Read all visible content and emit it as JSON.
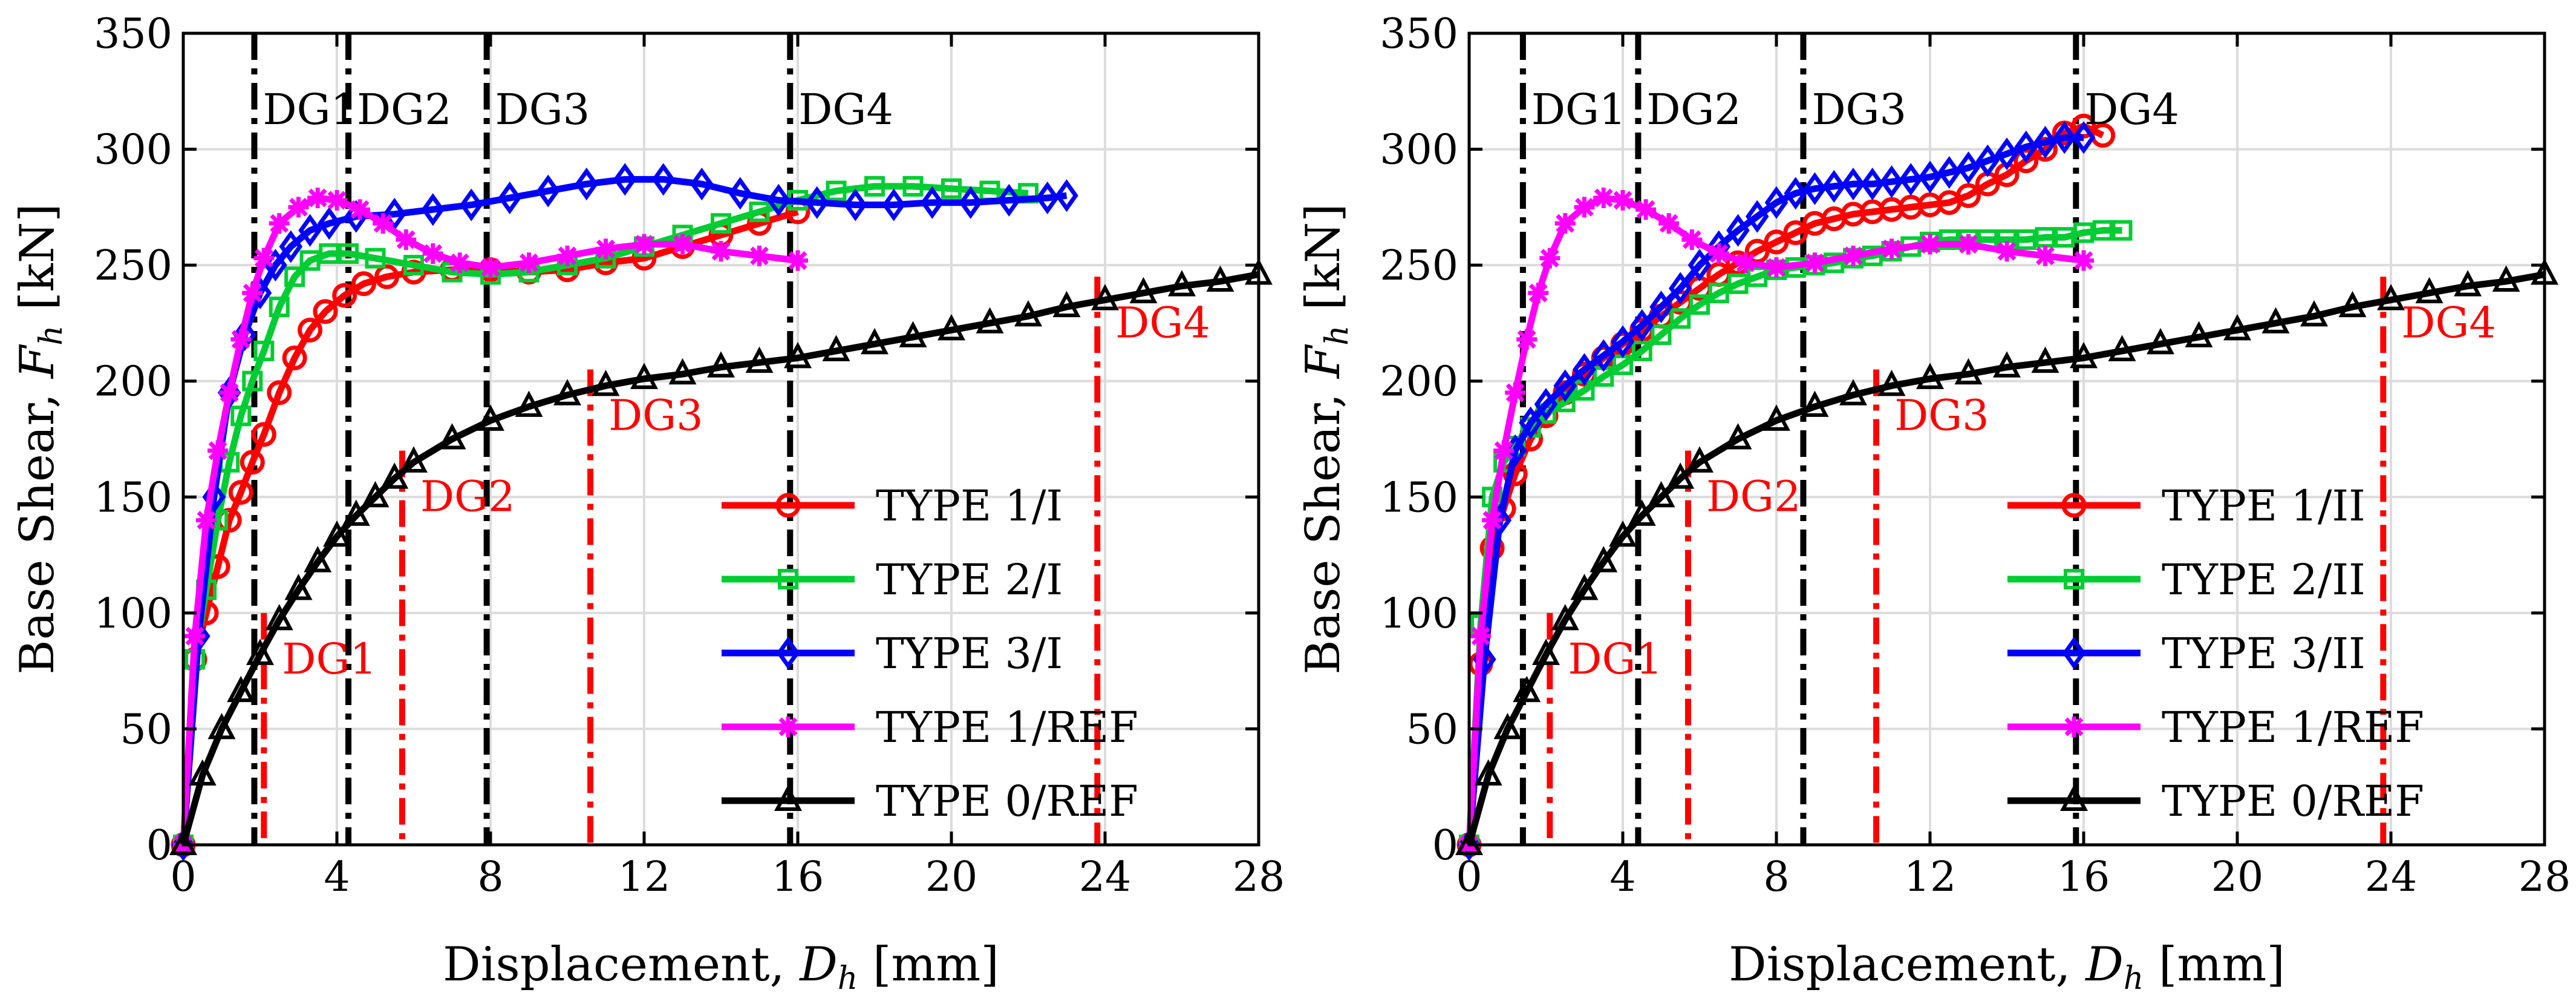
{
  "chart_data": [
    {
      "type": "line",
      "panel": "left",
      "xlabel": "Displacement, D_h [mm]",
      "xlabel_text": "Displacement, ",
      "xlabel_sym": "D",
      "xlabel_sub": "h",
      "xlabel_unit": " [mm]",
      "ylabel_text": "Base Shear, ",
      "ylabel_sym": "F",
      "ylabel_sub": "h",
      "ylabel_unit": " [kN]",
      "xlim": [
        0,
        28
      ],
      "ylim": [
        0,
        350
      ],
      "xticks": [
        0,
        4,
        8,
        12,
        16,
        20,
        24,
        28
      ],
      "yticks": [
        0,
        50,
        100,
        150,
        200,
        250,
        300,
        350
      ],
      "grid": true,
      "legend_position": "lower-right",
      "black_dg_lines": [
        {
          "label": "DG1",
          "x": 1.85
        },
        {
          "label": "DG2",
          "x": 4.3
        },
        {
          "label": "DG3",
          "x": 7.9
        },
        {
          "label": "DG4",
          "x": 15.8
        }
      ],
      "red_dg_lines": [
        {
          "label": "DG1",
          "x": 2.1,
          "ytop": 100
        },
        {
          "label": "DG2",
          "x": 5.7,
          "ytop": 170
        },
        {
          "label": "DG3",
          "x": 10.6,
          "ytop": 205
        },
        {
          "label": "DG4",
          "x": 23.8,
          "ytop": 245
        }
      ],
      "series": [
        {
          "name": "TYPE 1/I",
          "color": "#ff0000",
          "marker": "circle",
          "x": [
            0,
            0.3,
            0.6,
            0.9,
            1.2,
            1.5,
            1.8,
            2.1,
            2.5,
            2.9,
            3.3,
            3.7,
            4.2,
            4.7,
            5.3,
            6,
            7,
            8,
            9,
            10,
            11,
            12,
            13,
            14,
            15,
            16
          ],
          "y": [
            0,
            80,
            100,
            120,
            140,
            152,
            165,
            177,
            195,
            210,
            222,
            230,
            237,
            242,
            245,
            247,
            248,
            248,
            247,
            248,
            251,
            253,
            258,
            263,
            268,
            273
          ]
        },
        {
          "name": "TYPE 2/I",
          "color": "#00cc33",
          "marker": "square",
          "x": [
            0,
            0.3,
            0.6,
            0.9,
            1.2,
            1.5,
            1.8,
            2.1,
            2.5,
            2.9,
            3.3,
            3.8,
            4.3,
            5,
            6,
            7,
            8,
            9,
            10,
            11,
            12,
            13,
            14,
            15,
            16,
            17,
            18,
            19,
            20,
            21,
            22
          ],
          "y": [
            0,
            80,
            110,
            140,
            165,
            185,
            200,
            213,
            232,
            245,
            252,
            255,
            255,
            253,
            250,
            247,
            246,
            247,
            250,
            253,
            258,
            263,
            268,
            273,
            278,
            282,
            284,
            284,
            283,
            282,
            281
          ]
        },
        {
          "name": "TYPE 3/I",
          "color": "#0000ff",
          "marker": "diamond",
          "x": [
            0,
            0.4,
            0.8,
            1.2,
            1.6,
            2,
            2.4,
            2.8,
            3.3,
            3.8,
            4.5,
            5.5,
            6.5,
            7.5,
            8.5,
            9.5,
            10.5,
            11.5,
            12.5,
            13.5,
            14.5,
            15.5,
            16.5,
            17.5,
            18.5,
            19.5,
            20.5,
            21.5,
            22.5,
            23
          ],
          "y": [
            0,
            90,
            150,
            195,
            220,
            238,
            250,
            258,
            265,
            268,
            271,
            272,
            274,
            276,
            279,
            282,
            285,
            287,
            287,
            285,
            281,
            278,
            277,
            276,
            276,
            277,
            277,
            278,
            279,
            280
          ]
        },
        {
          "name": "TYPE 1/REF",
          "color": "#ff00ff",
          "marker": "star",
          "x": [
            0,
            0.3,
            0.6,
            0.9,
            1.2,
            1.5,
            1.8,
            2.1,
            2.5,
            3,
            3.5,
            4,
            4.6,
            5.2,
            5.8,
            6.5,
            7.2,
            8,
            9,
            10,
            11,
            12,
            13,
            14,
            15,
            16
          ],
          "y": [
            0,
            90,
            140,
            170,
            195,
            218,
            238,
            253,
            268,
            275,
            279,
            278,
            274,
            268,
            261,
            255,
            251,
            249,
            251,
            254,
            257,
            259,
            259,
            256,
            254,
            252
          ]
        },
        {
          "name": "TYPE 0/REF",
          "color": "#000000",
          "marker": "triangle",
          "x": [
            0,
            0.5,
            1,
            1.5,
            2,
            2.5,
            3,
            3.5,
            4,
            4.5,
            5,
            5.5,
            6,
            7,
            8,
            9,
            10,
            11,
            12,
            13,
            14,
            15,
            16,
            17,
            18,
            19,
            20,
            21,
            22,
            23,
            24,
            25,
            26,
            27,
            28
          ],
          "y": [
            0,
            30,
            50,
            66,
            82,
            97,
            110,
            122,
            133,
            142,
            150,
            158,
            165,
            175,
            183,
            189,
            194,
            198,
            201,
            203,
            206,
            208,
            210,
            213,
            216,
            219,
            222,
            225,
            228,
            232,
            235,
            238,
            241,
            243,
            246
          ]
        }
      ]
    },
    {
      "type": "line",
      "panel": "right",
      "xlabel": "Displacement, D_h [mm]",
      "xlabel_text": "Displacement, ",
      "xlabel_sym": "D",
      "xlabel_sub": "h",
      "xlabel_unit": " [mm]",
      "ylabel_text": "Base Shear, ",
      "ylabel_sym": "F",
      "ylabel_sub": "h",
      "ylabel_unit": " [kN]",
      "xlim": [
        0,
        28
      ],
      "ylim": [
        0,
        350
      ],
      "xticks": [
        0,
        4,
        8,
        12,
        16,
        20,
        24,
        28
      ],
      "yticks": [
        0,
        50,
        100,
        150,
        200,
        250,
        300,
        350
      ],
      "grid": true,
      "legend_position": "lower-right",
      "black_dg_lines": [
        {
          "label": "DG1",
          "x": 1.4
        },
        {
          "label": "DG2",
          "x": 4.4
        },
        {
          "label": "DG3",
          "x": 8.7
        },
        {
          "label": "DG4",
          "x": 15.8
        }
      ],
      "red_dg_lines": [
        {
          "label": "DG1",
          "x": 2.1,
          "ytop": 100
        },
        {
          "label": "DG2",
          "x": 5.7,
          "ytop": 170
        },
        {
          "label": "DG3",
          "x": 10.6,
          "ytop": 205
        },
        {
          "label": "DG4",
          "x": 23.8,
          "ytop": 245
        }
      ],
      "series": [
        {
          "name": "TYPE 1/II",
          "color": "#ff0000",
          "marker": "circle",
          "x": [
            0,
            0.3,
            0.6,
            0.9,
            1.2,
            1.6,
            2,
            2.5,
            3,
            3.5,
            4,
            4.5,
            5,
            5.5,
            6,
            6.5,
            7,
            7.5,
            8,
            8.5,
            9,
            9.5,
            10,
            10.5,
            11,
            11.5,
            12,
            12.5,
            13,
            13.5,
            14,
            14.5,
            15,
            15.5,
            16,
            16.5
          ],
          "y": [
            0,
            78,
            128,
            145,
            160,
            175,
            185,
            195,
            203,
            210,
            216,
            222,
            228,
            234,
            240,
            246,
            251,
            256,
            260,
            264,
            268,
            270,
            272,
            273,
            274,
            275,
            276,
            277,
            280,
            285,
            289,
            295,
            300,
            307,
            310,
            306
          ]
        },
        {
          "name": "TYPE 2/II",
          "color": "#00cc33",
          "marker": "square",
          "x": [
            0,
            0.3,
            0.6,
            0.9,
            1.2,
            1.6,
            2,
            2.5,
            3,
            3.5,
            4,
            4.5,
            5,
            5.5,
            6,
            6.5,
            7,
            7.5,
            8,
            8.5,
            9,
            9.5,
            10,
            10.5,
            11,
            11.5,
            12,
            12.5,
            13,
            13.5,
            14,
            14.5,
            15,
            15.5,
            16,
            16.5,
            17
          ],
          "y": [
            0,
            95,
            150,
            165,
            172,
            180,
            186,
            191,
            196,
            202,
            207,
            213,
            220,
            227,
            233,
            238,
            242,
            245,
            248,
            249,
            250,
            251,
            253,
            254,
            256,
            258,
            260,
            261,
            261,
            261,
            261,
            261,
            262,
            262,
            264,
            265,
            265
          ]
        },
        {
          "name": "TYPE 3/II",
          "color": "#0000ff",
          "marker": "diamond",
          "x": [
            0,
            0.4,
            0.8,
            1.2,
            1.6,
            2,
            2.5,
            3,
            3.5,
            4,
            4.5,
            5,
            5.5,
            6,
            6.5,
            7,
            7.5,
            8,
            8.5,
            9,
            9.5,
            10,
            10.5,
            11,
            11.5,
            12,
            12.5,
            13,
            13.5,
            14,
            14.5,
            15,
            15.5,
            16
          ],
          "y": [
            0,
            80,
            140,
            170,
            182,
            190,
            198,
            205,
            211,
            217,
            224,
            232,
            240,
            250,
            258,
            265,
            271,
            277,
            281,
            283,
            284,
            285,
            285,
            286,
            287,
            288,
            290,
            292,
            295,
            298,
            301,
            303,
            305,
            305
          ]
        },
        {
          "name": "TYPE 1/REF",
          "color": "#ff00ff",
          "marker": "star",
          "x": [
            0,
            0.3,
            0.6,
            0.9,
            1.2,
            1.5,
            1.8,
            2.1,
            2.5,
            3,
            3.5,
            4,
            4.6,
            5.2,
            5.8,
            6.5,
            7.2,
            8,
            9,
            10,
            11,
            12,
            13,
            14,
            15,
            16
          ],
          "y": [
            0,
            90,
            140,
            170,
            195,
            218,
            238,
            253,
            268,
            275,
            279,
            278,
            274,
            268,
            261,
            255,
            251,
            249,
            251,
            254,
            257,
            259,
            259,
            256,
            254,
            252
          ]
        },
        {
          "name": "TYPE 0/REF",
          "color": "#000000",
          "marker": "triangle",
          "x": [
            0,
            0.5,
            1,
            1.5,
            2,
            2.5,
            3,
            3.5,
            4,
            4.5,
            5,
            5.5,
            6,
            7,
            8,
            9,
            10,
            11,
            12,
            13,
            14,
            15,
            16,
            17,
            18,
            19,
            20,
            21,
            22,
            23,
            24,
            25,
            26,
            27,
            28
          ],
          "y": [
            0,
            30,
            50,
            66,
            82,
            97,
            110,
            122,
            133,
            142,
            150,
            158,
            165,
            175,
            183,
            189,
            194,
            198,
            201,
            203,
            206,
            208,
            210,
            213,
            216,
            219,
            222,
            225,
            228,
            232,
            235,
            238,
            241,
            243,
            246
          ]
        }
      ]
    }
  ]
}
